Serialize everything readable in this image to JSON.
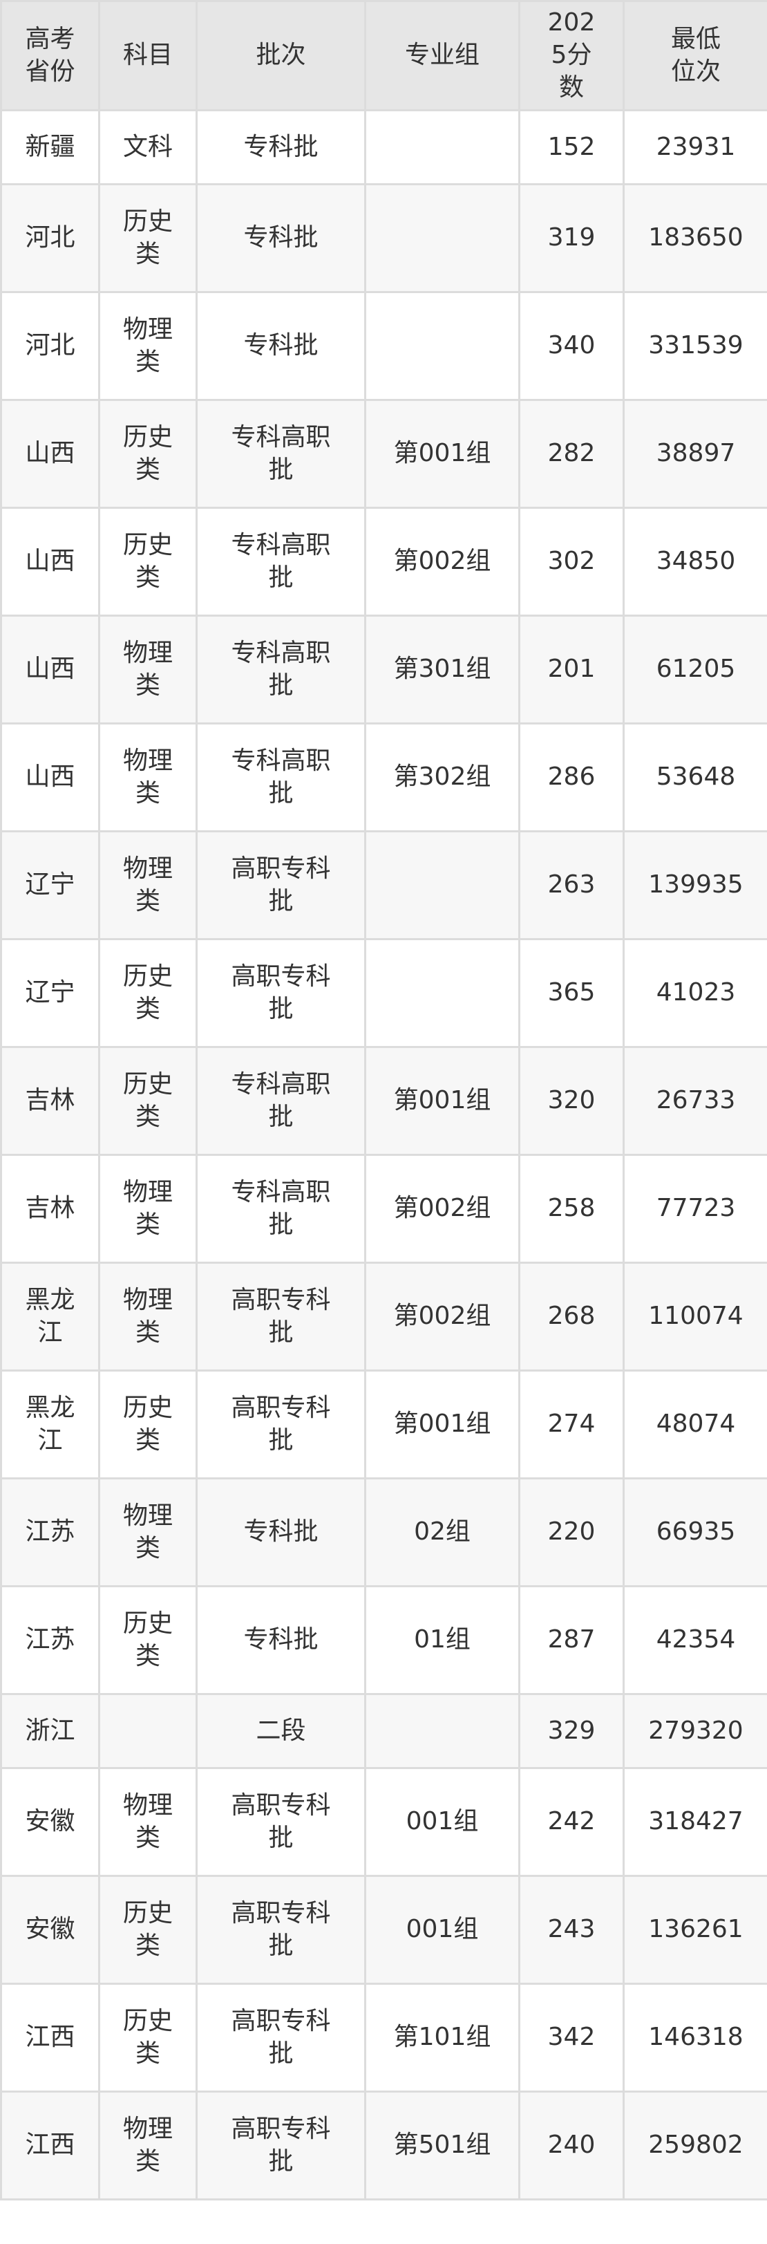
{
  "table": {
    "headers": [
      "高考省份",
      "科目",
      "批次",
      "专业组",
      "2025分数",
      "最低位次"
    ],
    "rows": [
      [
        "新疆",
        "文科",
        "专科批",
        "",
        "152",
        "23931"
      ],
      [
        "河北",
        "历史类",
        "专科批",
        "",
        "319",
        "183650"
      ],
      [
        "河北",
        "物理类",
        "专科批",
        "",
        "340",
        "331539"
      ],
      [
        "山西",
        "历史类",
        "专科高职批",
        "第001组",
        "282",
        "38897"
      ],
      [
        "山西",
        "历史类",
        "专科高职批",
        "第002组",
        "302",
        "34850"
      ],
      [
        "山西",
        "物理类",
        "专科高职批",
        "第301组",
        "201",
        "61205"
      ],
      [
        "山西",
        "物理类",
        "专科高职批",
        "第302组",
        "286",
        "53648"
      ],
      [
        "辽宁",
        "物理类",
        "高职专科批",
        "",
        "263",
        "139935"
      ],
      [
        "辽宁",
        "历史类",
        "高职专科批",
        "",
        "365",
        "41023"
      ],
      [
        "吉林",
        "历史类",
        "专科高职批",
        "第001组",
        "320",
        "26733"
      ],
      [
        "吉林",
        "物理类",
        "专科高职批",
        "第002组",
        "258",
        "77723"
      ],
      [
        "黑龙江",
        "物理类",
        "高职专科批",
        "第002组",
        "268",
        "110074"
      ],
      [
        "黑龙江",
        "历史类",
        "高职专科批",
        "第001组",
        "274",
        "48074"
      ],
      [
        "江苏",
        "物理类",
        "专科批",
        "02组",
        "220",
        "66935"
      ],
      [
        "江苏",
        "历史类",
        "专科批",
        "01组",
        "287",
        "42354"
      ],
      [
        "浙江",
        "",
        "二段",
        "",
        "329",
        "279320"
      ],
      [
        "安徽",
        "物理类",
        "高职专科批",
        "001组",
        "242",
        "318427"
      ],
      [
        "安徽",
        "历史类",
        "高职专科批",
        "001组",
        "243",
        "136261"
      ],
      [
        "江西",
        "历史类",
        "高职专科批",
        "第101组",
        "342",
        "146318"
      ],
      [
        "江西",
        "物理类",
        "高职专科批",
        "第501组",
        "240",
        "259802"
      ]
    ]
  }
}
